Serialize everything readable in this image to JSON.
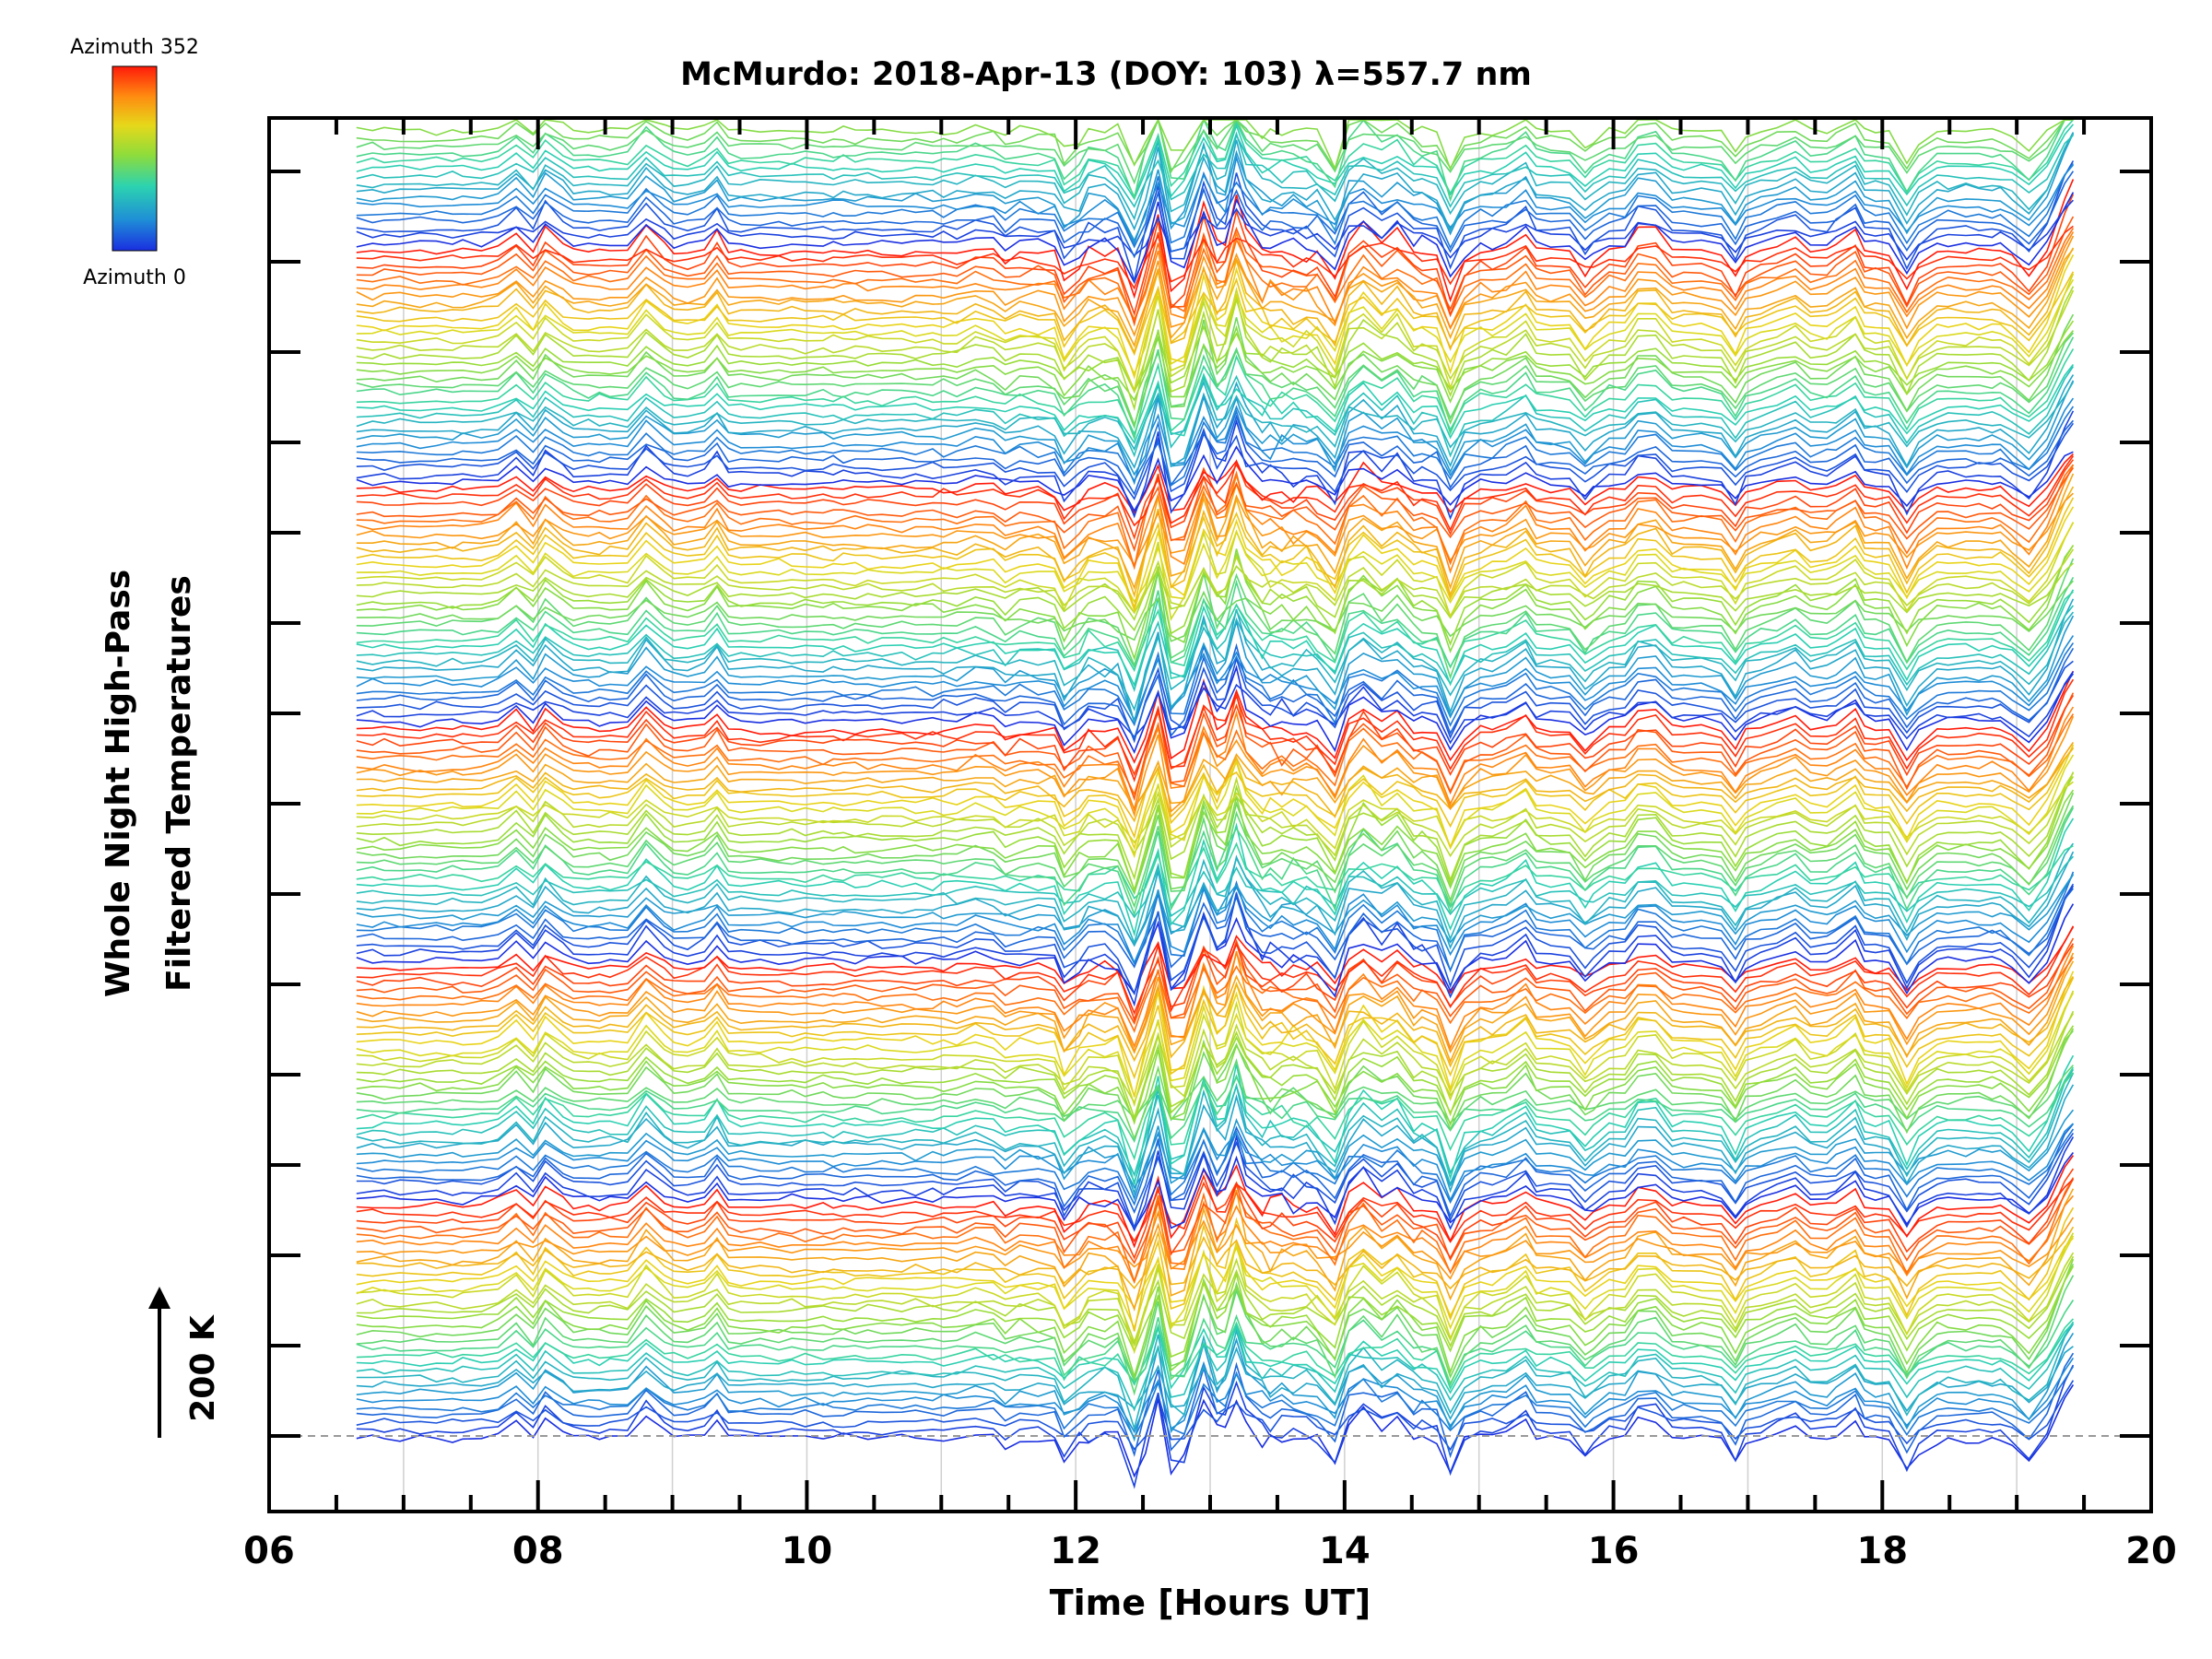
{
  "chart_data": {
    "type": "line",
    "title": "McMurdo: 2018-Apr-13 (DOY: 103) λ=557.7 nm",
    "xlabel": "Time [Hours UT]",
    "ylabel_line1": "Whole Night High-Pass",
    "ylabel_line2": "Filtered Temperatures",
    "xlim": [
      6,
      20
    ],
    "x_tick_labels": [
      "06",
      "08",
      "10",
      "12",
      "14",
      "16",
      "18",
      "20"
    ],
    "x_tick_values": [
      6,
      8,
      10,
      12,
      14,
      16,
      18,
      20
    ],
    "x_range_of_data": [
      6.65,
      19.42
    ],
    "scale_bar_label": "200 K",
    "colorbar": {
      "top_label": "Azimuth 352",
      "bottom_label": "Azimuth 0",
      "colormap": [
        "#1a2fe0",
        "#1f8fd6",
        "#2cd3b0",
        "#8fdc3a",
        "#e6d81a",
        "#ff8a10",
        "#ff1a0a"
      ]
    },
    "series_count_estimate": 176,
    "y_axis_tick_count": 15,
    "grid": "vertical lines at each hour, light gray",
    "baseline": "dashed gray line at the lowest major tick",
    "note_values": "Each trace is an azimuth-sorted temperature time series offset vertically; values vary by about ±60 K around each baseline."
  },
  "colors": {
    "axis": "#000000",
    "grid": "#d0d0d0",
    "baseline": "#999999"
  }
}
